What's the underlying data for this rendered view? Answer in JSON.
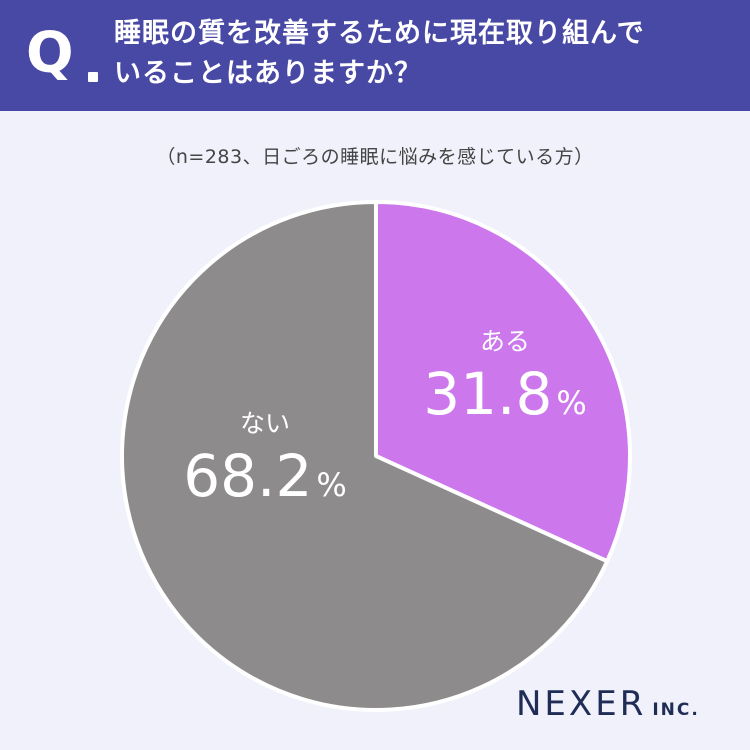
{
  "header": {
    "q_mark": "Q",
    "question_line1": "睡眠の質を改善するために現在取り組んで",
    "question_line2": "いることはありますか？"
  },
  "chart_data": {
    "type": "pie",
    "title": "",
    "subtitle": "（n=283、日ごろの睡眠に悩みを感じている方）",
    "series": [
      {
        "name": "ある",
        "value": 31.8,
        "label": "31.8",
        "unit": "%",
        "color": "#cc77ec"
      },
      {
        "name": "ない",
        "value": 68.2,
        "label": "68.2",
        "unit": "%",
        "color": "#8d8b8c"
      }
    ],
    "start_angle": "12 o'clock",
    "direction": "clockwise"
  },
  "logo": {
    "main": "NEXER",
    "suffix": "INC."
  }
}
